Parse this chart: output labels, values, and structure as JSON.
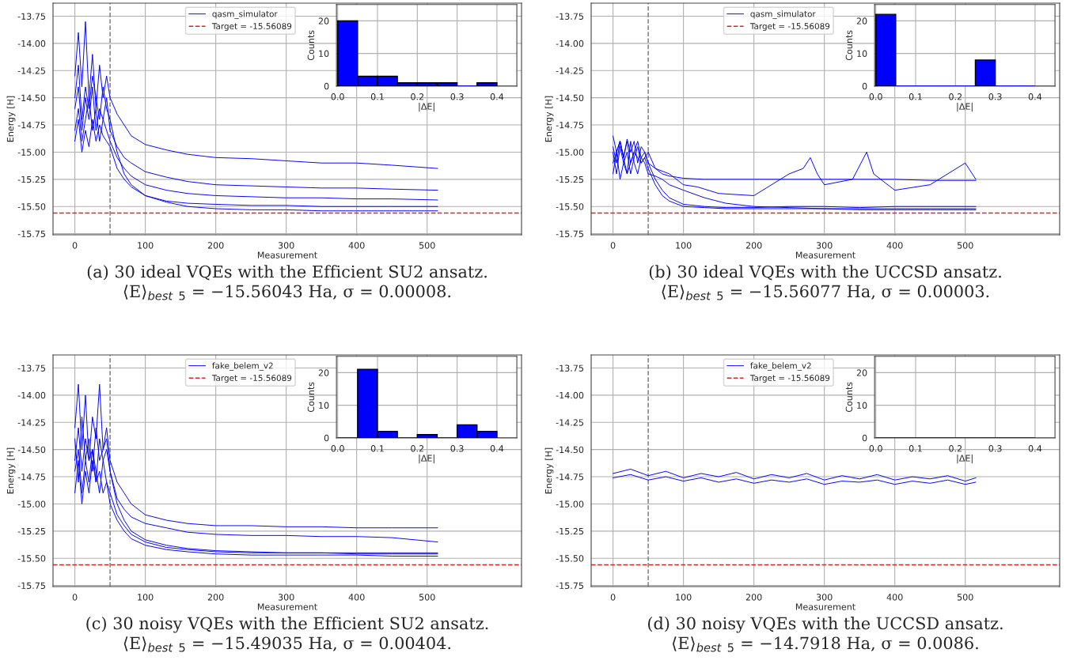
{
  "chart_data": [
    {
      "type": "line",
      "xlabel": "Measurement",
      "ylabel": "Energy [H]",
      "xlim": [
        -31,
        634
      ],
      "ylim": [
        -15.76,
        -13.63
      ],
      "xticks": [
        0,
        100,
        200,
        300,
        400,
        500
      ],
      "yticks": [
        {
          "value": -13.75,
          "label": "-13.75"
        },
        {
          "value": -14,
          "label": "-14.00"
        },
        {
          "value": -14.25,
          "label": "-14.25"
        },
        {
          "value": -14.5,
          "label": "-14.50"
        },
        {
          "value": -14.75,
          "label": "-14.75"
        },
        {
          "value": -15,
          "label": "-15.00"
        },
        {
          "value": -15.25,
          "label": "-15.25"
        },
        {
          "value": -15.5,
          "label": "-15.50"
        },
        {
          "value": -15.75,
          "label": "-15.75"
        }
      ],
      "grid": true,
      "legend": "top",
      "line_style": "solid",
      "x": [
        0,
        5,
        10,
        15,
        20,
        25,
        30,
        35,
        40,
        45,
        50,
        60,
        70,
        80,
        100,
        130,
        160,
        200,
        250,
        300,
        350,
        400,
        450,
        515
      ],
      "series": [
        {
          "name": "qasm_simulator",
          "color": "#0000ff",
          "values": [
            -14.3,
            -13.9,
            -14.4,
            -13.8,
            -14.5,
            -14.1,
            -14.6,
            -14.2,
            -14.5,
            -14.3,
            -14.5,
            -14.65,
            -14.75,
            -14.85,
            -14.93,
            -14.98,
            -15.02,
            -15.05,
            -15.06,
            -15.08,
            -15.1,
            -15.1,
            -15.12,
            -15.15
          ]
        },
        {
          "color": "#0000ff",
          "values": [
            -14.6,
            -14.4,
            -14.8,
            -14.5,
            -14.7,
            -14.4,
            -14.8,
            -14.6,
            -14.7,
            -14.5,
            -14.8,
            -14.95,
            -15.05,
            -15.1,
            -15.18,
            -15.23,
            -15.27,
            -15.3,
            -15.31,
            -15.32,
            -15.33,
            -15.33,
            -15.34,
            -15.35
          ]
        },
        {
          "color": "#0000ff",
          "values": [
            -14.8,
            -14.6,
            -14.9,
            -14.7,
            -14.5,
            -14.8,
            -14.6,
            -14.9,
            -14.7,
            -14.8,
            -14.9,
            -15.05,
            -15.15,
            -15.22,
            -15.3,
            -15.35,
            -15.38,
            -15.4,
            -15.41,
            -15.42,
            -15.42,
            -15.43,
            -15.43,
            -15.44
          ]
        },
        {
          "color": "#0000ff",
          "values": [
            -14.9,
            -14.7,
            -15.0,
            -14.8,
            -14.95,
            -14.7,
            -14.9,
            -14.75,
            -14.85,
            -14.9,
            -14.95,
            -15.15,
            -15.25,
            -15.32,
            -15.4,
            -15.45,
            -15.47,
            -15.48,
            -15.49,
            -15.49,
            -15.5,
            -15.5,
            -15.5,
            -15.5
          ]
        },
        {
          "color": "#0000ff",
          "values": [
            -14.5,
            -14.2,
            -14.7,
            -14.4,
            -14.6,
            -14.3,
            -14.5,
            -14.7,
            -14.4,
            -14.6,
            -14.7,
            -15.0,
            -15.2,
            -15.3,
            -15.4,
            -15.46,
            -15.5,
            -15.52,
            -15.53,
            -15.53,
            -15.54,
            -15.54,
            -15.54,
            -15.54
          ]
        }
      ],
      "ref_lines": [
        {
          "axis": "x",
          "value": 50,
          "color": "#808080",
          "line_style": "dashed"
        },
        {
          "axis": "y",
          "value": -15.56089,
          "label": "Target = -15.56089",
          "color": "#d62728",
          "line_style": "dashed"
        }
      ],
      "annotations": [
        "(a) 30 ideal VQEs with the Efficient SU2 ansatz.",
        "⟨E⟩$_{best}$ $_{5}$ = −15.56043 Ha, σ = 0.00008."
      ]
    },
    {
      "type": "histogram",
      "xlabel": "|ΔE|",
      "ylabel": "Counts",
      "bins": [
        0,
        0.05,
        0.1,
        0.15,
        0.2,
        0.25,
        0.3,
        0.35,
        0.4
      ],
      "values": [
        20,
        3,
        3,
        1,
        1,
        1,
        0,
        1
      ],
      "color": "#0000ff",
      "xlim": [
        -0.003,
        0.45
      ],
      "ylim": [
        0,
        25
      ],
      "xticks": [
        {
          "value": 0,
          "label": "0.0"
        },
        {
          "value": 0.1,
          "label": "0.1"
        },
        {
          "value": 0.2,
          "label": "0.2"
        },
        {
          "value": 0.3,
          "label": "0.3"
        },
        {
          "value": 0.4,
          "label": "0.4"
        }
      ],
      "yticks": [
        0,
        10,
        20
      ],
      "grid": true
    },
    {
      "type": "line",
      "xlabel": "Measurement",
      "ylabel": "Energy [H]",
      "xlim": [
        -31,
        634
      ],
      "ylim": [
        -15.76,
        -13.63
      ],
      "xticks": [
        0,
        100,
        200,
        300,
        400,
        500
      ],
      "yticks": [
        {
          "value": -13.75,
          "label": "-13.75"
        },
        {
          "value": -14,
          "label": "-14.00"
        },
        {
          "value": -14.25,
          "label": "-14.25"
        },
        {
          "value": -14.5,
          "label": "-14.50"
        },
        {
          "value": -14.75,
          "label": "-14.75"
        },
        {
          "value": -15,
          "label": "-15.00"
        },
        {
          "value": -15.25,
          "label": "-15.25"
        },
        {
          "value": -15.5,
          "label": "-15.50"
        },
        {
          "value": -15.75,
          "label": "-15.75"
        }
      ],
      "grid": true,
      "legend": "top",
      "line_style": "solid",
      "x": [
        0,
        5,
        10,
        15,
        20,
        25,
        30,
        35,
        40,
        45,
        50,
        60,
        70,
        80,
        100,
        130,
        160,
        200,
        250,
        300,
        350,
        400,
        450,
        515
      ],
      "series": [
        {
          "name": "qasm_simulator",
          "color": "#0000ff",
          "values": [
            -14.95,
            -15.1,
            -14.9,
            -15.05,
            -14.9,
            -15.1,
            -15.0,
            -14.9,
            -15.05,
            -15.0,
            -15.1,
            -15.15,
            -15.2,
            -15.22,
            -15.24,
            -15.25,
            -15.25,
            -15.25,
            -15.25,
            -15.25,
            -15.25,
            -15.25,
            -15.26,
            -15.26
          ]
        },
        {
          "color": "#0000ff",
          "x": [
            0,
            10,
            20,
            30,
            40,
            50,
            60,
            80,
            100,
            120,
            150,
            200,
            250,
            270,
            280,
            290,
            300,
            340,
            360,
            370,
            400,
            450,
            500,
            515
          ],
          "values": [
            -15.1,
            -14.9,
            -15.2,
            -15.0,
            -15.1,
            -15.0,
            -15.15,
            -15.2,
            -15.3,
            -15.32,
            -15.38,
            -15.4,
            -15.2,
            -15.15,
            -15.05,
            -15.2,
            -15.3,
            -15.25,
            -15.0,
            -15.2,
            -15.35,
            -15.3,
            -15.1,
            -15.25
          ]
        },
        {
          "color": "#0000ff",
          "values": [
            -15.0,
            -15.2,
            -14.95,
            -15.1,
            -15.0,
            -15.2,
            -15.05,
            -14.95,
            -15.1,
            -15.05,
            -15.15,
            -15.3,
            -15.4,
            -15.45,
            -15.5,
            -15.51,
            -15.52,
            -15.52,
            -15.52,
            -15.52,
            -15.52,
            -15.52,
            -15.52,
            -15.52
          ]
        },
        {
          "color": "#0000ff",
          "values": [
            -15.2,
            -15.0,
            -15.25,
            -15.1,
            -15.2,
            -14.9,
            -15.1,
            -15.2,
            -15.05,
            -15.1,
            -15.2,
            -15.22,
            -15.25,
            -15.3,
            -15.35,
            -15.42,
            -15.47,
            -15.5,
            -15.51,
            -15.52,
            -15.53,
            -15.53,
            -15.53,
            -15.53
          ]
        },
        {
          "color": "#0000ff",
          "values": [
            -14.85,
            -15.0,
            -14.9,
            -15.05,
            -14.88,
            -15.0,
            -14.9,
            -15.1,
            -14.95,
            -15.0,
            -15.1,
            -15.25,
            -15.35,
            -15.42,
            -15.48,
            -15.5,
            -15.51,
            -15.51,
            -15.5,
            -15.5,
            -15.51,
            -15.5,
            -15.5,
            -15.5
          ]
        }
      ],
      "ref_lines": [
        {
          "axis": "x",
          "value": 50,
          "color": "#808080",
          "line_style": "dashed"
        },
        {
          "axis": "y",
          "value": -15.56089,
          "label": "Target = -15.56089",
          "color": "#d62728",
          "line_style": "dashed"
        }
      ],
      "annotations": [
        "(b) 30 ideal VQEs with the UCCSD ansatz.",
        "⟨E⟩$_{best}$ $_{5}$ = −15.56077 Ha, σ = 0.00003."
      ]
    },
    {
      "type": "histogram",
      "xlabel": "|ΔE|",
      "ylabel": "Counts",
      "bins": [
        0,
        0.05,
        0.1,
        0.15,
        0.2,
        0.25,
        0.3,
        0.35,
        0.4
      ],
      "values": [
        22,
        0,
        0,
        0,
        0,
        8,
        0,
        0
      ],
      "color": "#0000ff",
      "xlim": [
        -0.003,
        0.45
      ],
      "ylim": [
        0,
        25
      ],
      "xticks": [
        {
          "value": 0,
          "label": "0.0"
        },
        {
          "value": 0.1,
          "label": "0.1"
        },
        {
          "value": 0.2,
          "label": "0.2"
        },
        {
          "value": 0.3,
          "label": "0.3"
        },
        {
          "value": 0.4,
          "label": "0.4"
        }
      ],
      "yticks": [
        0,
        10,
        20
      ],
      "grid": true
    },
    {
      "type": "line",
      "xlabel": "Measurement",
      "ylabel": "Energy [H]",
      "xlim": [
        -31,
        634
      ],
      "ylim": [
        -15.76,
        -13.63
      ],
      "xticks": [
        0,
        100,
        200,
        300,
        400,
        500
      ],
      "yticks": [
        {
          "value": -13.75,
          "label": "-13.75"
        },
        {
          "value": -14,
          "label": "-14.00"
        },
        {
          "value": -14.25,
          "label": "-14.25"
        },
        {
          "value": -14.5,
          "label": "-14.50"
        },
        {
          "value": -14.75,
          "label": "-14.75"
        },
        {
          "value": -15,
          "label": "-15.00"
        },
        {
          "value": -15.25,
          "label": "-15.25"
        },
        {
          "value": -15.5,
          "label": "-15.50"
        },
        {
          "value": -15.75,
          "label": "-15.75"
        }
      ],
      "grid": true,
      "legend": "top",
      "line_style": "solid",
      "x": [
        0,
        5,
        10,
        15,
        20,
        25,
        30,
        35,
        40,
        45,
        50,
        60,
        70,
        80,
        100,
        130,
        160,
        200,
        250,
        300,
        350,
        400,
        450,
        515
      ],
      "series": [
        {
          "name": "fake_belem_v2",
          "color": "#0000ff",
          "values": [
            -14.3,
            -13.9,
            -14.5,
            -14.0,
            -14.6,
            -14.2,
            -14.4,
            -13.9,
            -14.5,
            -14.3,
            -14.6,
            -14.8,
            -14.9,
            -15.0,
            -15.1,
            -15.15,
            -15.18,
            -15.2,
            -15.2,
            -15.21,
            -15.21,
            -15.22,
            -15.22,
            -15.22
          ]
        },
        {
          "color": "#0000ff",
          "values": [
            -14.6,
            -14.3,
            -14.7,
            -14.4,
            -14.6,
            -14.5,
            -14.8,
            -14.4,
            -14.6,
            -14.5,
            -14.7,
            -14.95,
            -15.05,
            -15.12,
            -15.18,
            -15.22,
            -15.26,
            -15.28,
            -15.29,
            -15.29,
            -15.3,
            -15.3,
            -15.31,
            -15.35
          ]
        },
        {
          "color": "#0000ff",
          "values": [
            -14.7,
            -14.5,
            -14.9,
            -14.6,
            -14.8,
            -14.5,
            -14.7,
            -14.9,
            -14.6,
            -14.8,
            -14.9,
            -15.1,
            -15.2,
            -15.28,
            -15.35,
            -15.4,
            -15.42,
            -15.44,
            -15.45,
            -15.45,
            -15.45,
            -15.45,
            -15.45,
            -15.45
          ]
        },
        {
          "color": "#0000ff",
          "values": [
            -14.4,
            -14.8,
            -14.2,
            -14.6,
            -14.4,
            -14.7,
            -14.3,
            -14.6,
            -14.5,
            -14.4,
            -14.7,
            -15.0,
            -15.15,
            -15.25,
            -15.33,
            -15.38,
            -15.41,
            -15.43,
            -15.44,
            -15.45,
            -15.45,
            -15.46,
            -15.46,
            -15.46
          ]
        },
        {
          "color": "#0000ff",
          "values": [
            -14.9,
            -14.6,
            -15.0,
            -14.7,
            -14.9,
            -14.6,
            -14.8,
            -14.7,
            -14.9,
            -14.8,
            -15.0,
            -15.15,
            -15.25,
            -15.32,
            -15.38,
            -15.42,
            -15.44,
            -15.46,
            -15.47,
            -15.47,
            -15.47,
            -15.47,
            -15.48,
            -15.48
          ]
        }
      ],
      "ref_lines": [
        {
          "axis": "x",
          "value": 50,
          "color": "#808080",
          "line_style": "dashed"
        },
        {
          "axis": "y",
          "value": -15.56089,
          "label": "Target = -15.56089",
          "color": "#d62728",
          "line_style": "dashed"
        }
      ],
      "annotations": [
        "(c) 30 noisy VQEs with the Efficient SU2 ansatz.",
        "⟨E⟩$_{best}$ $_{5}$ = −15.49035 Ha, σ = 0.00404."
      ]
    },
    {
      "type": "histogram",
      "xlabel": "|ΔE|",
      "ylabel": "Counts",
      "bins": [
        0,
        0.05,
        0.1,
        0.15,
        0.2,
        0.25,
        0.3,
        0.35,
        0.4
      ],
      "values": [
        0,
        21,
        2,
        0,
        1,
        0,
        4,
        2
      ],
      "color": "#0000ff",
      "xlim": [
        -0.003,
        0.45
      ],
      "ylim": [
        0,
        25
      ],
      "xticks": [
        {
          "value": 0,
          "label": "0.0"
        },
        {
          "value": 0.1,
          "label": "0.1"
        },
        {
          "value": 0.2,
          "label": "0.2"
        },
        {
          "value": 0.3,
          "label": "0.3"
        },
        {
          "value": 0.4,
          "label": "0.4"
        }
      ],
      "yticks": [
        0,
        10,
        20
      ],
      "grid": true
    },
    {
      "type": "line",
      "xlabel": "Measurement",
      "ylabel": "Energy [H]",
      "xlim": [
        -31,
        634
      ],
      "ylim": [
        -15.76,
        -13.63
      ],
      "xticks": [
        0,
        100,
        200,
        300,
        400,
        500
      ],
      "yticks": [
        {
          "value": -13.75,
          "label": "-13.75"
        },
        {
          "value": -14,
          "label": "-14.00"
        },
        {
          "value": -14.25,
          "label": "-14.25"
        },
        {
          "value": -14.5,
          "label": "-14.50"
        },
        {
          "value": -14.75,
          "label": "-14.75"
        },
        {
          "value": -15,
          "label": "-15.00"
        },
        {
          "value": -15.25,
          "label": "-15.25"
        },
        {
          "value": -15.5,
          "label": "-15.50"
        },
        {
          "value": -15.75,
          "label": "-15.75"
        }
      ],
      "grid": true,
      "legend": "top",
      "line_style": "solid",
      "x": [
        0,
        25,
        50,
        75,
        100,
        125,
        150,
        175,
        200,
        225,
        250,
        275,
        300,
        325,
        350,
        375,
        400,
        425,
        450,
        475,
        500,
        515
      ],
      "series": [
        {
          "name": "fake_belem_v2",
          "color": "#0000ff",
          "values": [
            -14.72,
            -14.68,
            -14.74,
            -14.7,
            -14.76,
            -14.72,
            -14.75,
            -14.71,
            -14.77,
            -14.73,
            -14.76,
            -14.72,
            -14.78,
            -14.74,
            -14.77,
            -14.73,
            -14.78,
            -14.75,
            -14.77,
            -14.74,
            -14.79,
            -14.76
          ]
        },
        {
          "color": "#0000ff",
          "values": [
            -14.76,
            -14.73,
            -14.78,
            -14.75,
            -14.79,
            -14.76,
            -14.8,
            -14.77,
            -14.81,
            -14.78,
            -14.8,
            -14.77,
            -14.82,
            -14.79,
            -14.8,
            -14.78,
            -14.82,
            -14.79,
            -14.81,
            -14.78,
            -14.82,
            -14.8
          ]
        }
      ],
      "ref_lines": [
        {
          "axis": "x",
          "value": 50,
          "color": "#808080",
          "line_style": "dashed"
        },
        {
          "axis": "y",
          "value": -15.56089,
          "label": "Target = -15.56089",
          "color": "#d62728",
          "line_style": "dashed"
        }
      ],
      "annotations": [
        "(d) 30 noisy VQEs with the UCCSD ansatz.",
        "⟨E⟩$_{best}$ $_{5}$ = −14.7918 Ha, σ = 0.0086."
      ]
    },
    {
      "type": "histogram",
      "xlabel": "|ΔE|",
      "ylabel": "Counts",
      "bins": [
        0,
        0.05,
        0.1,
        0.15,
        0.2,
        0.25,
        0.3,
        0.35,
        0.4
      ],
      "values": [
        0,
        0,
        0,
        0,
        0,
        0,
        0,
        0
      ],
      "color": "#0000ff",
      "xlim": [
        -0.003,
        0.45
      ],
      "ylim": [
        0,
        25
      ],
      "xticks": [
        {
          "value": 0,
          "label": "0.0"
        },
        {
          "value": 0.1,
          "label": "0.1"
        },
        {
          "value": 0.2,
          "label": "0.2"
        },
        {
          "value": 0.3,
          "label": "0.3"
        },
        {
          "value": 0.4,
          "label": "0.4"
        }
      ],
      "yticks": [
        0,
        10,
        20
      ],
      "grid": true
    }
  ]
}
